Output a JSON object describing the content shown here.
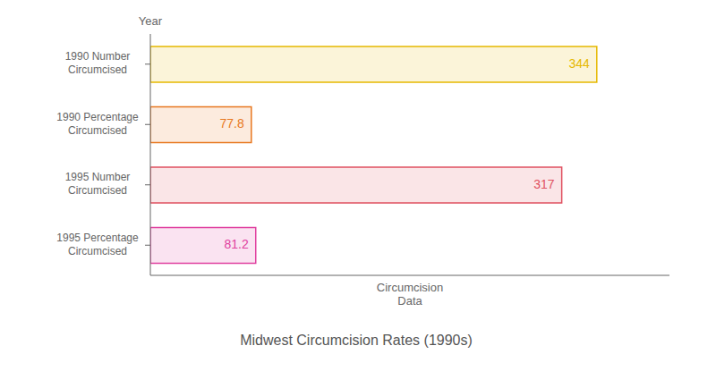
{
  "chart_data": {
    "type": "bar",
    "orientation": "horizontal",
    "title": "Midwest Circumcision Rates (1990s)",
    "categories": [
      "1990 Number\nCircumcised",
      "1990 Percentage\nCircumcised",
      "1995 Number\nCircumcised",
      "1995 Percentage\nCircumcised"
    ],
    "values": [
      344,
      77.8,
      317,
      81.2
    ],
    "colors": [
      "#e6b800",
      "#e87820",
      "#e05060",
      "#e040a0"
    ],
    "xlabel": "Circumcision\nData",
    "ylabel": "Year",
    "xlim": [
      0,
      400
    ],
    "data_labels": true,
    "tick_labels": "y",
    "grid": false
  }
}
